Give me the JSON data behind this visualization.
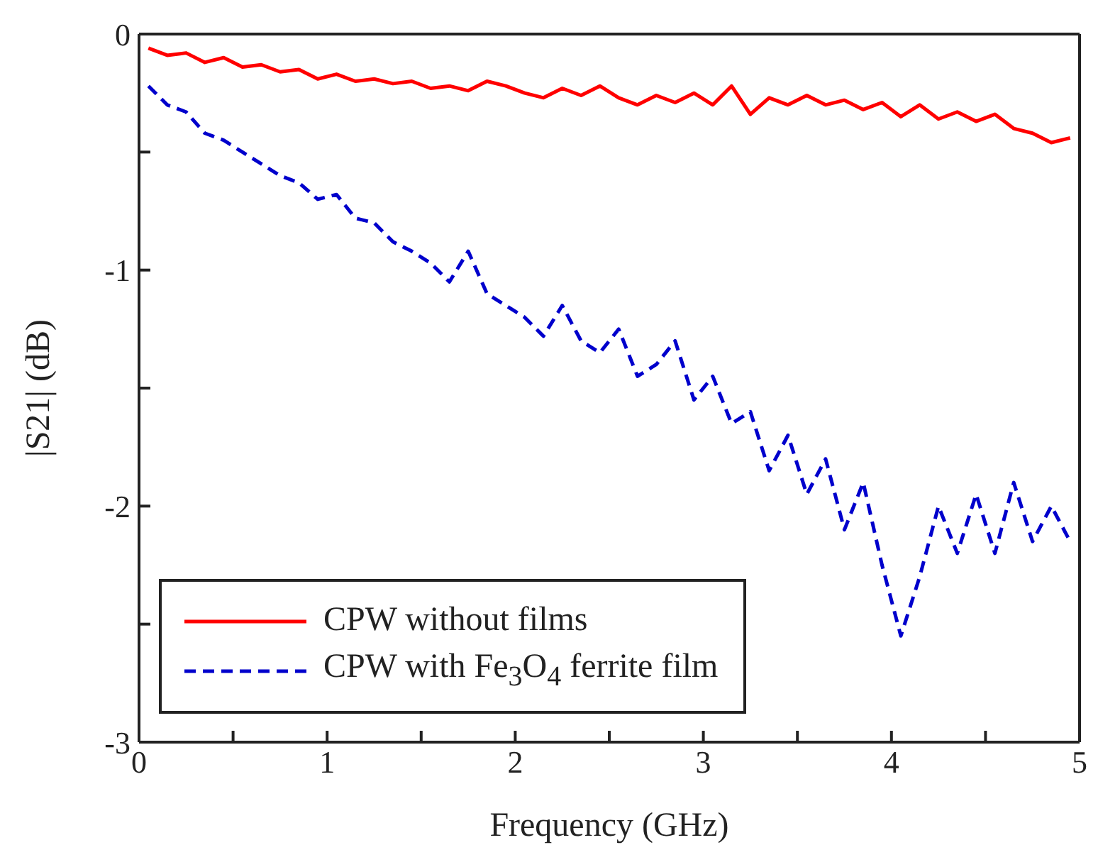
{
  "chart_data": {
    "type": "line",
    "xlabel": "Frequency (GHz)",
    "ylabel": "|S21| (dB)",
    "x": [
      0.05,
      0.15,
      0.25,
      0.35,
      0.45,
      0.55,
      0.65,
      0.75,
      0.85,
      0.95,
      1.05,
      1.15,
      1.25,
      1.35,
      1.45,
      1.55,
      1.65,
      1.75,
      1.85,
      1.95,
      2.05,
      2.15,
      2.25,
      2.35,
      2.45,
      2.55,
      2.65,
      2.75,
      2.85,
      2.95,
      3.05,
      3.15,
      3.25,
      3.35,
      3.45,
      3.55,
      3.65,
      3.75,
      3.85,
      3.95,
      4.05,
      4.15,
      4.25,
      4.35,
      4.45,
      4.55,
      4.65,
      4.75,
      4.85,
      4.95
    ],
    "series": [
      {
        "name": "CPW without films",
        "color": "#ff0000",
        "line_style": "solid",
        "values": [
          -0.06,
          -0.09,
          -0.08,
          -0.12,
          -0.1,
          -0.14,
          -0.13,
          -0.16,
          -0.15,
          -0.19,
          -0.17,
          -0.2,
          -0.19,
          -0.21,
          -0.2,
          -0.23,
          -0.22,
          -0.24,
          -0.2,
          -0.22,
          -0.25,
          -0.27,
          -0.23,
          -0.26,
          -0.22,
          -0.27,
          -0.3,
          -0.26,
          -0.29,
          -0.25,
          -0.3,
          -0.22,
          -0.34,
          -0.27,
          -0.3,
          -0.26,
          -0.3,
          -0.28,
          -0.32,
          -0.29,
          -0.35,
          -0.3,
          -0.36,
          -0.33,
          -0.37,
          -0.34,
          -0.4,
          -0.42,
          -0.46,
          -0.44
        ]
      },
      {
        "name": "CPW with Fe$_{3}$O$_{4}$ ferrite film",
        "color": "#0000cc",
        "line_style": "dashed",
        "values": [
          -0.22,
          -0.3,
          -0.33,
          -0.42,
          -0.45,
          -0.5,
          -0.55,
          -0.6,
          -0.63,
          -0.7,
          -0.68,
          -0.78,
          -0.8,
          -0.88,
          -0.92,
          -0.97,
          -1.05,
          -0.92,
          -1.1,
          -1.15,
          -1.2,
          -1.28,
          -1.15,
          -1.3,
          -1.35,
          -1.25,
          -1.45,
          -1.4,
          -1.3,
          -1.55,
          -1.45,
          -1.65,
          -1.6,
          -1.85,
          -1.7,
          -1.95,
          -1.8,
          -2.1,
          -1.9,
          -2.25,
          -2.55,
          -2.3,
          -2.0,
          -2.2,
          -1.95,
          -2.2,
          -1.9,
          -2.15,
          -2.0,
          -2.15
        ]
      }
    ],
    "xlim": [
      0,
      5
    ],
    "xticks": [
      0,
      {
        "value": 0.5,
        "label": null
      },
      1,
      {
        "value": 1.5,
        "label": null
      },
      2,
      {
        "value": 2.5,
        "label": null
      },
      3,
      {
        "value": 3.5,
        "label": null
      },
      4,
      {
        "value": 4.5,
        "label": null
      },
      5
    ],
    "ylim": [
      -3,
      0
    ],
    "yticks": [
      -3,
      {
        "value": -2.5,
        "label": null
      },
      -2,
      {
        "value": -1.5,
        "label": null
      },
      -1,
      {
        "value": -0.5,
        "label": null
      },
      0
    ],
    "legend": "bottom left"
  }
}
